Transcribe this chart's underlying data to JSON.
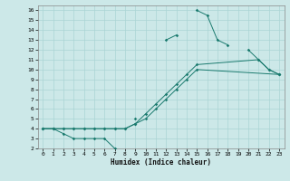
{
  "background_color": "#cce8e8",
  "grid_color": "#aad4d4",
  "line_color": "#1a7a6e",
  "xlabel": "Humidex (Indice chaleur)",
  "xlim": [
    -0.5,
    23.5
  ],
  "ylim": [
    2,
    16.5
  ],
  "xticks": [
    0,
    1,
    2,
    3,
    4,
    5,
    6,
    7,
    8,
    9,
    10,
    11,
    12,
    13,
    14,
    15,
    16,
    17,
    18,
    19,
    20,
    21,
    22,
    23
  ],
  "yticks": [
    2,
    3,
    4,
    5,
    6,
    7,
    8,
    9,
    10,
    11,
    12,
    13,
    14,
    15,
    16
  ],
  "series": [
    {
      "segments": [
        {
          "x": [
            0,
            1,
            2,
            3,
            4,
            5,
            6,
            7
          ],
          "y": [
            4,
            4,
            3.5,
            3,
            3,
            3,
            3,
            2
          ]
        },
        {
          "x": [
            9
          ],
          "y": [
            5
          ]
        },
        {
          "x": [
            12,
            13
          ],
          "y": [
            13,
            13.5
          ]
        },
        {
          "x": [
            15,
            16,
            17,
            18
          ],
          "y": [
            16,
            15.5,
            13,
            12.5
          ]
        },
        {
          "x": [
            20,
            21,
            22,
            23
          ],
          "y": [
            12,
            11,
            10,
            9.5
          ]
        }
      ]
    },
    {
      "segments": [
        {
          "x": [
            0,
            1,
            2,
            3,
            4,
            5,
            6,
            7,
            8,
            9,
            10,
            11,
            12,
            13,
            14,
            15,
            21,
            22,
            23
          ],
          "y": [
            4,
            4,
            4,
            4,
            4,
            4,
            4,
            4,
            4,
            4.5,
            5.5,
            6.5,
            7.5,
            8.5,
            9.5,
            10.5,
            11,
            10,
            9.5
          ]
        }
      ]
    },
    {
      "segments": [
        {
          "x": [
            0,
            1,
            2,
            3,
            4,
            5,
            6,
            7,
            8,
            9,
            10,
            11,
            12,
            13,
            14,
            15,
            23
          ],
          "y": [
            4,
            4,
            4,
            4,
            4,
            4,
            4,
            4,
            4,
            4.5,
            5,
            6,
            7,
            8,
            9,
            10,
            9.5
          ]
        }
      ]
    }
  ]
}
